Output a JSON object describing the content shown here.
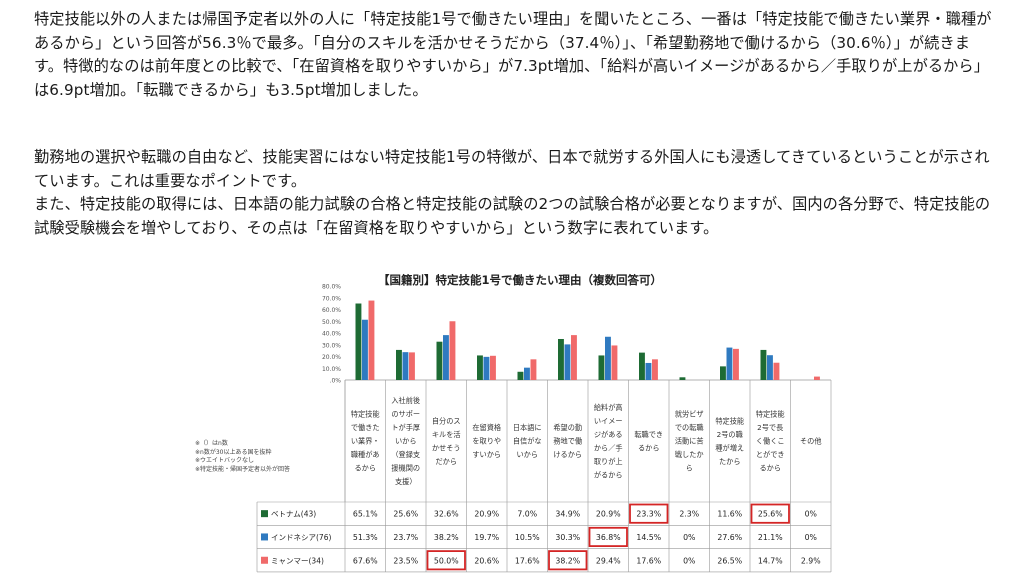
{
  "text": {
    "p1": "特定技能以外の人または帰国予定者以外の人に「特定技能1号で働きたい理由」を聞いたところ、一番は「特定技能で働きたい業界・職種があるから」という回答が56.3％で最多。「自分のスキルを活かせそうだから（37.4％）」、「希望勤務地で働けるから（30.6％）」が続きます。特徴的なのは前年度との比較で、「在留資格を取りやすいから」が7.3pt増加、「給料が高いイメージがあるから／手取りが上がるから」は6.9pt増加。「転職できるから」も3.5pt増加しました。",
    "p2a": "勤務地の選択や転職の自由など、技能実習にはない特定技能1号の特徴が、日本で就労する外国人にも浸透してきているということが示されています。これは重要なポイントです。",
    "p2b": "また、特定技能の取得には、日本語の能力試験の合格と特定技能の試験の2つの試験合格が必要となりますが、国内の各分野で、特定技能の試験受験機会を増やしており、その点は「在留資格を取りやすいから」という数字に表れています。"
  },
  "chart_data": {
    "type": "bar",
    "title": "【国籍別】特定技能1号で働きたい理由（複数回答可）",
    "ylim": [
      0,
      80
    ],
    "yticks": [
      "80.0%",
      "70.0%",
      "60.0%",
      "50.0%",
      "40.0%",
      "30.0%",
      "20.0%",
      "10.0%",
      ".0%"
    ],
    "categories": [
      [
        "特定技能",
        "で働きた",
        "い業界・",
        "職種があ",
        "るから"
      ],
      [
        "入社前後",
        "のサポー",
        "トが手厚",
        "いから",
        "（登録支",
        "援機関の",
        "支援）"
      ],
      [
        "自分のス",
        "キルを活",
        "かせそう",
        "だから"
      ],
      [
        "在留資格",
        "を取りや",
        "すいから"
      ],
      [
        "日本語に",
        "自信がな",
        "いから"
      ],
      [
        "希望の勤",
        "務地で働",
        "けるから"
      ],
      [
        "給料が高",
        "いイメー",
        "ジがある",
        "から／手",
        "取りが上",
        "がるから"
      ],
      [
        "転職でき",
        "るから"
      ],
      [
        "就労ビザ",
        "での転職",
        "活動に苦",
        "戦したか",
        "ら"
      ],
      [
        "特定技能",
        "2号の職",
        "種が増え",
        "たから"
      ],
      [
        "特定技能",
        "2号で長",
        "く働くこ",
        "とができ",
        "るから"
      ],
      [
        "その他"
      ]
    ],
    "series": [
      {
        "name": "ベトナム(43)",
        "color": "#1e6b34",
        "values": [
          65.1,
          25.6,
          32.6,
          20.9,
          7.0,
          34.9,
          20.9,
          23.3,
          2.3,
          11.6,
          25.6,
          0
        ],
        "labels": [
          "65.1%",
          "25.6%",
          "32.6%",
          "20.9%",
          "7.0%",
          "34.9%",
          "20.9%",
          "23.3%",
          "2.3%",
          "11.6%",
          "25.6%",
          "0%"
        ],
        "highlight": [
          false,
          false,
          false,
          false,
          false,
          false,
          false,
          true,
          false,
          false,
          true,
          false
        ]
      },
      {
        "name": "インドネシア(76)",
        "color": "#2f7ac0",
        "values": [
          51.3,
          23.7,
          38.2,
          19.7,
          10.5,
          30.3,
          36.8,
          14.5,
          0,
          27.6,
          21.1,
          0
        ],
        "labels": [
          "51.3%",
          "23.7%",
          "38.2%",
          "19.7%",
          "10.5%",
          "30.3%",
          "36.8%",
          "14.5%",
          "0%",
          "27.6%",
          "21.1%",
          "0%"
        ],
        "highlight": [
          false,
          false,
          false,
          false,
          false,
          false,
          true,
          false,
          false,
          false,
          false,
          false
        ]
      },
      {
        "name": "ミャンマー(34)",
        "color": "#f06a6a",
        "values": [
          67.6,
          23.5,
          50.0,
          20.6,
          17.6,
          38.2,
          29.4,
          17.6,
          0,
          26.5,
          14.7,
          2.9
        ],
        "labels": [
          "67.6%",
          "23.5%",
          "50.0%",
          "20.6%",
          "17.6%",
          "38.2%",
          "29.4%",
          "17.6%",
          "0%",
          "26.5%",
          "14.7%",
          "2.9%"
        ],
        "highlight": [
          false,
          false,
          true,
          false,
          false,
          true,
          false,
          false,
          false,
          false,
          false,
          false
        ]
      }
    ],
    "notes": [
      "※（）はn数",
      "※n数が30以上ある国を抜粋",
      "※ウエイトバックなし",
      "※特定技能・帰国予定者以外が回答"
    ],
    "grid": false,
    "legend": "table-left"
  }
}
